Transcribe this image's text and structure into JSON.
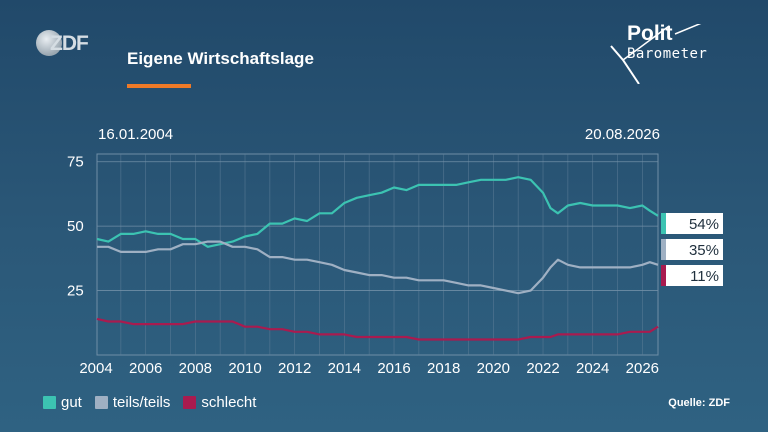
{
  "header": {
    "brand": "ZDF",
    "title": "Eigene Wirtschaftslage",
    "logo_line1": "Polit",
    "logo_line2": "Barometer",
    "accent_color": "#ef7a27"
  },
  "dates": {
    "start": "16.01.2004",
    "end": "20.08.2026"
  },
  "legend": [
    {
      "label": "gut",
      "color": "#3cc3b2"
    },
    {
      "label": "teils/teils",
      "color": "#9fb0c3"
    },
    {
      "label": "schlecht",
      "color": "#a91b4f"
    }
  ],
  "source": "Quelle: ZDF",
  "chart_data": {
    "type": "line",
    "xlim": [
      2004.04,
      2026.63
    ],
    "ylim": [
      0,
      78
    ],
    "yticks": [
      25,
      50,
      75
    ],
    "xticks": [
      2004,
      2006,
      2008,
      2010,
      2012,
      2014,
      2016,
      2018,
      2020,
      2022,
      2024,
      2026
    ],
    "grid": true,
    "series": [
      {
        "name": "gut",
        "color": "#3cc3b2",
        "end_label": "54%",
        "x": [
          2004.04,
          2004.5,
          2005.0,
          2005.5,
          2006.0,
          2006.5,
          2007.0,
          2007.5,
          2008.0,
          2008.5,
          2009.0,
          2009.5,
          2010.0,
          2010.5,
          2011.0,
          2011.5,
          2012.0,
          2012.5,
          2013.0,
          2013.5,
          2014.0,
          2014.5,
          2015.0,
          2015.5,
          2016.0,
          2016.5,
          2017.0,
          2017.5,
          2018.0,
          2018.5,
          2019.0,
          2019.5,
          2020.0,
          2020.5,
          2021.0,
          2021.5,
          2022.0,
          2022.3,
          2022.6,
          2023.0,
          2023.5,
          2024.0,
          2024.5,
          2025.0,
          2025.5,
          2026.0,
          2026.3,
          2026.63
        ],
        "values": [
          45,
          44,
          47,
          47,
          48,
          47,
          47,
          45,
          45,
          42,
          43,
          44,
          46,
          47,
          51,
          51,
          53,
          52,
          55,
          55,
          59,
          61,
          62,
          63,
          65,
          64,
          66,
          66,
          66,
          66,
          67,
          68,
          68,
          68,
          69,
          68,
          63,
          57,
          55,
          58,
          59,
          58,
          58,
          58,
          57,
          58,
          56,
          54
        ]
      },
      {
        "name": "teils/teils",
        "color": "#9fb0c3",
        "end_label": "35%",
        "x": [
          2004.04,
          2004.5,
          2005.0,
          2005.5,
          2006.0,
          2006.5,
          2007.0,
          2007.5,
          2008.0,
          2008.5,
          2009.0,
          2009.5,
          2010.0,
          2010.5,
          2011.0,
          2011.5,
          2012.0,
          2012.5,
          2013.0,
          2013.5,
          2014.0,
          2014.5,
          2015.0,
          2015.5,
          2016.0,
          2016.5,
          2017.0,
          2017.5,
          2018.0,
          2018.5,
          2019.0,
          2019.5,
          2020.0,
          2020.5,
          2021.0,
          2021.5,
          2022.0,
          2022.3,
          2022.6,
          2023.0,
          2023.5,
          2024.0,
          2024.5,
          2025.0,
          2025.5,
          2026.0,
          2026.3,
          2026.63
        ],
        "values": [
          42,
          42,
          40,
          40,
          40,
          41,
          41,
          43,
          43,
          44,
          44,
          42,
          42,
          41,
          38,
          38,
          37,
          37,
          36,
          35,
          33,
          32,
          31,
          31,
          30,
          30,
          29,
          29,
          29,
          28,
          27,
          27,
          26,
          25,
          24,
          25,
          30,
          34,
          37,
          35,
          34,
          34,
          34,
          34,
          34,
          35,
          36,
          35
        ]
      },
      {
        "name": "schlecht",
        "color": "#a91b4f",
        "end_label": "11%",
        "x": [
          2004.04,
          2004.5,
          2005.0,
          2005.5,
          2006.0,
          2006.5,
          2007.0,
          2007.5,
          2008.0,
          2008.5,
          2009.0,
          2009.5,
          2010.0,
          2010.5,
          2011.0,
          2011.5,
          2012.0,
          2012.5,
          2013.0,
          2013.5,
          2014.0,
          2014.5,
          2015.0,
          2015.5,
          2016.0,
          2016.5,
          2017.0,
          2017.5,
          2018.0,
          2018.5,
          2019.0,
          2019.5,
          2020.0,
          2020.5,
          2021.0,
          2021.5,
          2022.0,
          2022.3,
          2022.6,
          2023.0,
          2023.5,
          2024.0,
          2024.5,
          2025.0,
          2025.5,
          2026.0,
          2026.3,
          2026.63
        ],
        "values": [
          14,
          13,
          13,
          12,
          12,
          12,
          12,
          12,
          13,
          13,
          13,
          13,
          11,
          11,
          10,
          10,
          9,
          9,
          8,
          8,
          8,
          7,
          7,
          7,
          7,
          7,
          6,
          6,
          6,
          6,
          6,
          6,
          6,
          6,
          6,
          7,
          7,
          7,
          8,
          8,
          8,
          8,
          8,
          8,
          9,
          9,
          9,
          11
        ]
      }
    ]
  }
}
